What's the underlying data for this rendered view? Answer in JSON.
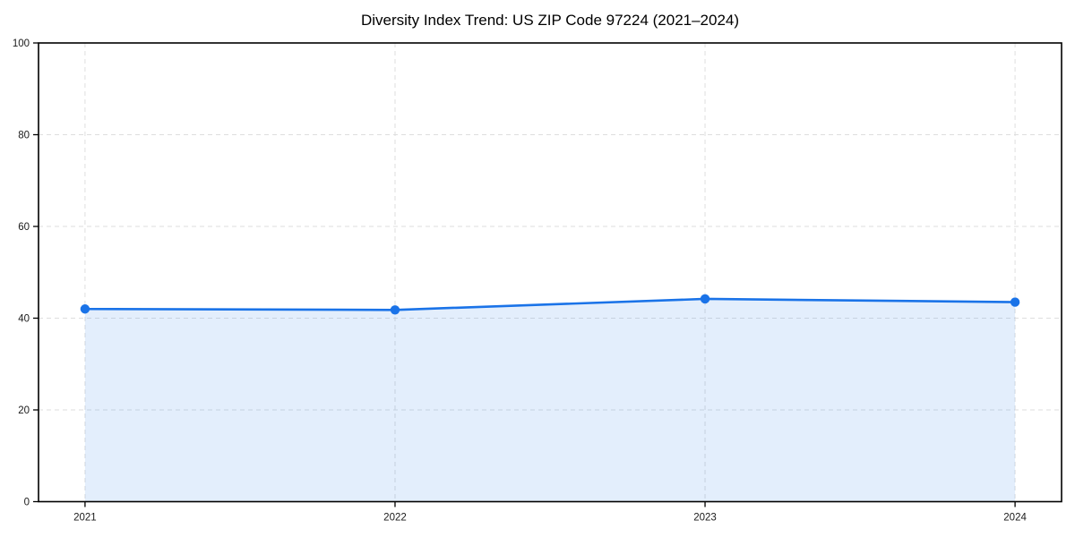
{
  "title": "Diversity Index Trend: US ZIP Code 97224 (2021–2024)",
  "chart_data": {
    "type": "area",
    "title": "Diversity Index Trend: US ZIP Code 97224 (2021–2024)",
    "x": [
      2021,
      2022,
      2023,
      2024
    ],
    "values": [
      42.0,
      41.8,
      44.2,
      43.5
    ],
    "series_name": "Diversity Index",
    "xlabel": "",
    "ylabel": "",
    "xlim": [
      2020.85,
      2024.15
    ],
    "ylim": [
      0,
      100
    ],
    "xticks": [
      2021,
      2022,
      2023,
      2024
    ],
    "yticks": [
      0,
      20,
      40,
      60,
      80,
      100
    ],
    "grid": true,
    "grid_style": "dashed",
    "legend": "none",
    "colors": {
      "line": "#1a73e8",
      "marker": "#1a73e8",
      "fill": "rgba(26,115,232,0.12)",
      "grid": "#dedede",
      "spine": "#000000",
      "tick_text": "#1a1a1a"
    }
  }
}
